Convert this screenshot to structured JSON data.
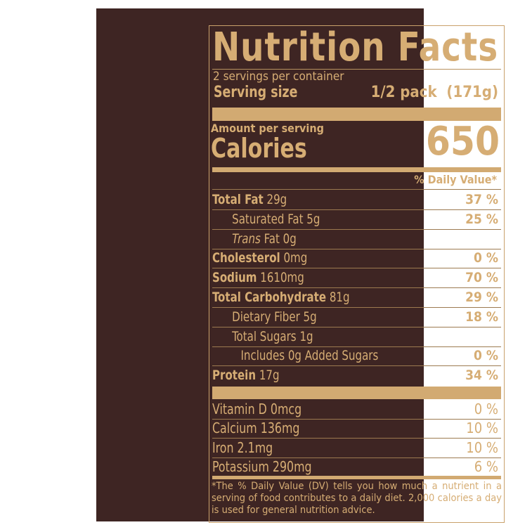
{
  "title": "Nutrition Facts",
  "servings_per_container": "2 servings per container",
  "serving_size_label": "Serving size",
  "serving_size_value": "1/2 pack  (171g)",
  "amount_per_serving": "Amount per serving",
  "calories_label": "Calories",
  "calories_value": "650",
  "daily_value_header": "% Daily Value*",
  "nutrients": [
    {
      "name": "Total Fat",
      "amount": "29g",
      "dv": "37 %",
      "bold": true,
      "indent": 0
    },
    {
      "name": "Saturated Fat",
      "amount": "5g",
      "dv": "25 %",
      "bold": false,
      "indent": 1
    },
    {
      "name": "Trans",
      "suffix": "Fat",
      "amount": "0g",
      "dv": "",
      "bold": false,
      "indent": 1
    },
    {
      "name": "Cholesterol",
      "amount": "0mg",
      "dv": "0 %",
      "bold": true,
      "indent": 0
    },
    {
      "name": "Sodium",
      "amount": "1610mg",
      "dv": "70 %",
      "bold": true,
      "indent": 0
    },
    {
      "name": "Total Carbohydrate",
      "amount": "81g",
      "dv": "29 %",
      "bold": true,
      "indent": 0
    },
    {
      "name": "Dietary Fiber",
      "amount": "5g",
      "dv": "18 %",
      "bold": false,
      "indent": 1
    },
    {
      "name": "Total Sugars",
      "amount": "1g",
      "dv": "",
      "bold": false,
      "indent": 1
    },
    {
      "name": "Includes 0g Added Sugars",
      "amount": "",
      "dv": "0 %",
      "bold": false,
      "indent": 2
    },
    {
      "name": "Protein",
      "amount": "17g",
      "dv": "34 %",
      "bold": true,
      "indent": 0
    }
  ],
  "vitamins": [
    {
      "name": "Vitamin D",
      "amount": "0mcg",
      "dv": "0 %"
    },
    {
      "name": "Calcium",
      "amount": "136mg",
      "dv": "10 %"
    },
    {
      "name": "Iron",
      "amount": "2.1mg",
      "dv": "10 %"
    },
    {
      "name": "Potassium",
      "amount": "290mg",
      "dv": "6 %"
    }
  ],
  "footnote": "*The % Daily Value (DV) tells you how much a nutrient in a serving of food contributes to a daily diet. 2,000 calories a day is used for general nutrition advice.",
  "colors": {
    "background": "#3e2523",
    "text": "#d6ad74"
  }
}
